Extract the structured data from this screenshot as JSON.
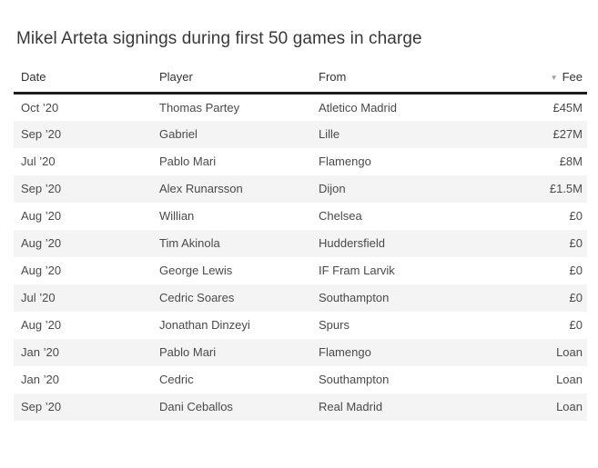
{
  "title": "Mikel Arteta signings during first 50 games in charge",
  "table": {
    "columns": [
      {
        "key": "date",
        "label": "Date"
      },
      {
        "key": "player",
        "label": "Player"
      },
      {
        "key": "from",
        "label": "From"
      },
      {
        "key": "fee",
        "label": "Fee",
        "sorted": "descending"
      }
    ],
    "sort_icon": "▼",
    "rows": [
      {
        "date": "Oct ’20",
        "player": "Thomas Partey",
        "from": "Atletico Madrid",
        "fee": "£45M"
      },
      {
        "date": "Sep ’20",
        "player": "Gabriel",
        "from": "Lille",
        "fee": "£27M"
      },
      {
        "date": "Jul ’20",
        "player": "Pablo Mari",
        "from": "Flamengo",
        "fee": "£8M"
      },
      {
        "date": "Sep ’20",
        "player": "Alex Runarsson",
        "from": "Dijon",
        "fee": "£1.5M"
      },
      {
        "date": "Aug ’20",
        "player": "Willian",
        "from": "Chelsea",
        "fee": "£0"
      },
      {
        "date": "Aug ’20",
        "player": "Tim Akinola",
        "from": "Huddersfield",
        "fee": "£0"
      },
      {
        "date": "Aug ’20",
        "player": "George Lewis",
        "from": "IF Fram Larvik",
        "fee": "£0"
      },
      {
        "date": "Jul ’20",
        "player": "Cedric Soares",
        "from": "Southampton",
        "fee": "£0"
      },
      {
        "date": "Aug ’20",
        "player": "Jonathan Dinzeyi",
        "from": "Spurs",
        "fee": "£0"
      },
      {
        "date": "Jan ’20",
        "player": "Pablo Mari",
        "from": "Flamengo",
        "fee": "Loan"
      },
      {
        "date": "Jan ’20",
        "player": "Cedric",
        "from": "Southampton",
        "fee": "Loan"
      },
      {
        "date": "Sep ’20",
        "player": "Dani Ceballos",
        "from": "Real Madrid",
        "fee": "Loan"
      }
    ]
  },
  "colors": {
    "title_text": "#383838",
    "header_text": "#333333",
    "cell_text": "#4a4a4a",
    "stripe": "#f4f4f4",
    "header_border": "#1d1d1d",
    "sort_icon": "#9b9b9b"
  },
  "chart_data": {
    "type": "table",
    "title": "Mikel Arteta signings during first 50 games in charge",
    "columns": [
      "Date",
      "Player",
      "From",
      "Fee"
    ],
    "sorted_by": "Fee",
    "sort_direction": "descending",
    "rows": [
      [
        "Oct ’20",
        "Thomas Partey",
        "Atletico Madrid",
        "£45M"
      ],
      [
        "Sep ’20",
        "Gabriel",
        "Lille",
        "£27M"
      ],
      [
        "Jul ’20",
        "Pablo Mari",
        "Flamengo",
        "£8M"
      ],
      [
        "Sep ’20",
        "Alex Runarsson",
        "Dijon",
        "£1.5M"
      ],
      [
        "Aug ’20",
        "Willian",
        "Chelsea",
        "£0"
      ],
      [
        "Aug ’20",
        "Tim Akinola",
        "Huddersfield",
        "£0"
      ],
      [
        "Aug ’20",
        "George Lewis",
        "IF Fram Larvik",
        "£0"
      ],
      [
        "Jul ’20",
        "Cedric Soares",
        "Southampton",
        "£0"
      ],
      [
        "Aug ’20",
        "Jonathan Dinzeyi",
        "Spurs",
        "£0"
      ],
      [
        "Jan ’20",
        "Pablo Mari",
        "Flamengo",
        "Loan"
      ],
      [
        "Jan ’20",
        "Cedric",
        "Southampton",
        "Loan"
      ],
      [
        "Sep ’20",
        "Dani Ceballos",
        "Real Madrid",
        "Loan"
      ]
    ],
    "layout": {
      "striped_rows": true,
      "stripe_on": "even",
      "grid": false
    }
  }
}
